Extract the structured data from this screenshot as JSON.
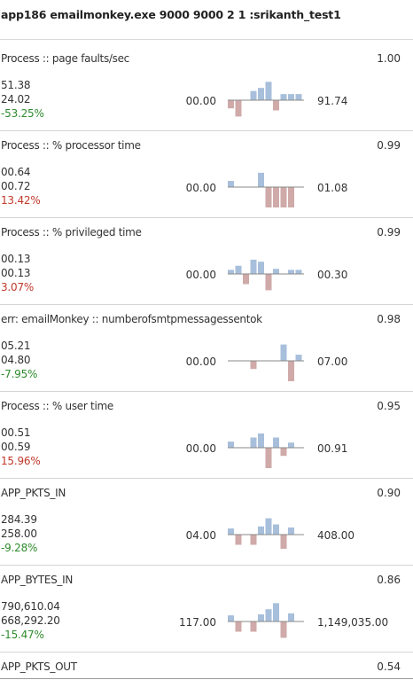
{
  "header": {
    "title": "app186 emailmonkey.exe  9000 9000 2 1 :srikanth_test1"
  },
  "colors": {
    "up_bar": "#a7bfdb",
    "down_bar": "#cfaaa8",
    "baseline": "#888888",
    "negative_change": "#2e8b2e",
    "positive_change": "#c0392b"
  },
  "metrics": [
    {
      "name": "Process :: page faults/sec",
      "score": "1.00",
      "current": "51.38",
      "previous": "24.02",
      "change": "-53.25%",
      "direction": "neg",
      "min": "00.00",
      "max": "91.74",
      "spark": [
        -0.4,
        -0.8,
        0,
        0.45,
        0.6,
        0.9,
        -0.5,
        0.3,
        0.3,
        0.3
      ]
    },
    {
      "name": "Process :: % processor time",
      "score": "0.99",
      "current": "00.64",
      "previous": "00.72",
      "change": "13.42%",
      "direction": "pos",
      "min": "00.00",
      "max": "01.08",
      "spark": [
        0.3,
        0,
        0,
        0,
        0.7,
        -1.0,
        -1.0,
        -1.0,
        -1.0,
        0
      ]
    },
    {
      "name": "Process :: % privileged time",
      "score": "0.99",
      "current": "00.13",
      "previous": "00.13",
      "change": "3.07%",
      "direction": "pos",
      "min": "00.00",
      "max": "00.30",
      "spark": [
        0.2,
        0.4,
        -0.5,
        0.7,
        0.6,
        -0.8,
        0.25,
        0,
        0.2,
        0.2
      ]
    },
    {
      "name": "err: emailMonkey :: numberofsmtpmessagessentok",
      "score": "0.98",
      "current": "05.21",
      "previous": "04.80",
      "change": "-7.95%",
      "direction": "neg",
      "min": "00.00",
      "max": "07.00",
      "spark": [
        0,
        0,
        0,
        -0.4,
        0,
        0,
        0,
        0.8,
        -1.0,
        0.3
      ]
    },
    {
      "name": "Process :: % user time",
      "score": "0.95",
      "current": "00.51",
      "previous": "00.59",
      "change": "15.96%",
      "direction": "pos",
      "min": "00.00",
      "max": "00.91",
      "spark": [
        0.3,
        0,
        0,
        0.5,
        0.7,
        -1.0,
        0.5,
        -0.4,
        0.25,
        0
      ]
    },
    {
      "name": "APP_PKTS_IN",
      "score": "0.90",
      "current": "284.39",
      "previous": "258.00",
      "change": "-9.28%",
      "direction": "neg",
      "min": "04.00",
      "max": "408.00",
      "spark": [
        0.3,
        -0.5,
        0,
        -0.5,
        0.4,
        0.8,
        0.5,
        -0.7,
        0.35,
        0
      ]
    },
    {
      "name": "APP_BYTES_IN",
      "score": "0.86",
      "current": "790,610.04",
      "previous": "668,292.20",
      "change": "-15.47%",
      "direction": "neg",
      "min": "117.00",
      "max": "1,149,035.00",
      "spark": [
        0.3,
        -0.5,
        0,
        -0.5,
        0.35,
        0.6,
        0.9,
        -0.8,
        0.4,
        0
      ]
    }
  ],
  "last_metric": {
    "name": "APP_PKTS_OUT",
    "score": "0.54"
  }
}
